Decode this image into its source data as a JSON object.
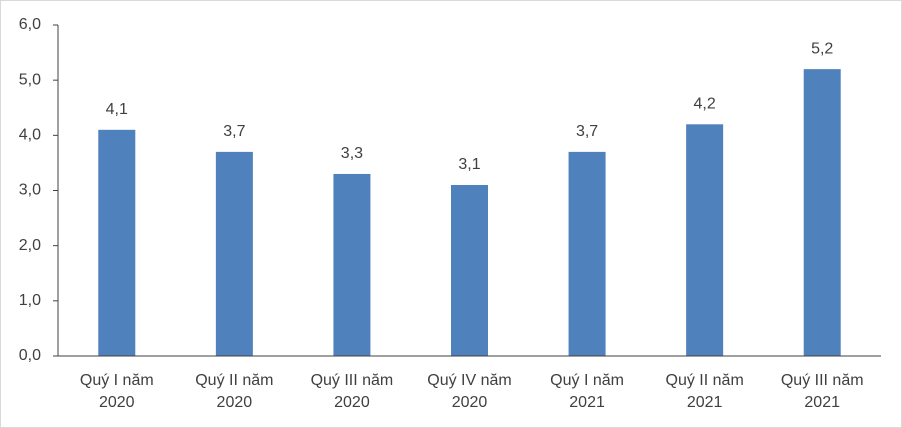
{
  "chart_data": {
    "type": "bar",
    "categories": [
      "Quý I năm 2020",
      "Quý II năm 2020",
      "Quý III năm 2020",
      "Quý IV năm 2020",
      "Quý I năm 2021",
      "Quý II năm 2021",
      "Quý III năm 2021"
    ],
    "values": [
      4.1,
      3.7,
      3.3,
      3.1,
      3.7,
      4.2,
      5.2
    ],
    "value_labels": [
      "4,1",
      "3,7",
      "3,3",
      "3,1",
      "3,7",
      "4,2",
      "5,2"
    ],
    "color": "#4f81bd",
    "ylim": [
      0,
      6
    ],
    "yticks": [
      {
        "value": 0,
        "label": "0,0"
      },
      {
        "value": 1,
        "label": "1,0"
      },
      {
        "value": 2,
        "label": "2,0"
      },
      {
        "value": 3,
        "label": "3,0"
      },
      {
        "value": 4,
        "label": "4,0"
      },
      {
        "value": 5,
        "label": "5,0"
      },
      {
        "value": 6,
        "label": "6,0"
      }
    ],
    "grid": false
  }
}
